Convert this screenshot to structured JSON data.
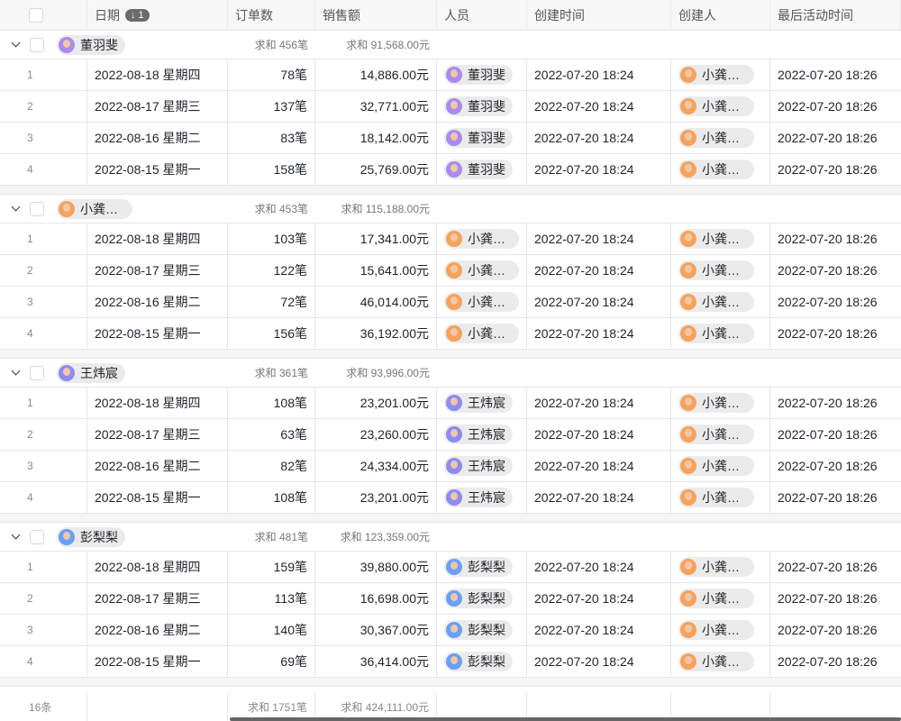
{
  "header": {
    "columns": [
      "日期",
      "订单数",
      "销售额",
      "人员",
      "创建时间",
      "创建人",
      "最后活动时间"
    ],
    "sort_badge": "↓ 1"
  },
  "groups": [
    {
      "name": "董羽斐",
      "avatar_color": "#a98bf0",
      "sum_orders": "求和 456笔",
      "sum_sales": "求和 91,568.00元",
      "rows": [
        [
          "1",
          "2022-08-18 星期四",
          "78笔",
          "14,886.00元"
        ],
        [
          "2",
          "2022-08-17 星期三",
          "137笔",
          "32,771.00元"
        ],
        [
          "3",
          "2022-08-16 星期二",
          "83笔",
          "18,142.00元"
        ],
        [
          "4",
          "2022-08-15 星期一",
          "158笔",
          "25,769.00元"
        ]
      ]
    },
    {
      "name": "小龚同学",
      "avatar_color": "#f5a25d",
      "sum_orders": "求和 453笔",
      "sum_sales": "求和 115,188.00元",
      "rows": [
        [
          "1",
          "2022-08-18 星期四",
          "103笔",
          "17,341.00元"
        ],
        [
          "2",
          "2022-08-17 星期三",
          "122笔",
          "15,641.00元"
        ],
        [
          "3",
          "2022-08-16 星期二",
          "72笔",
          "46,014.00元"
        ],
        [
          "4",
          "2022-08-15 星期一",
          "156笔",
          "36,192.00元"
        ]
      ]
    },
    {
      "name": "王炜宸",
      "avatar_color": "#8c8cf5",
      "sum_orders": "求和 361笔",
      "sum_sales": "求和 93,996.00元",
      "rows": [
        [
          "1",
          "2022-08-18 星期四",
          "108笔",
          "23,201.00元"
        ],
        [
          "2",
          "2022-08-17 星期三",
          "63笔",
          "23,260.00元"
        ],
        [
          "3",
          "2022-08-16 星期二",
          "82笔",
          "24,334.00元"
        ],
        [
          "4",
          "2022-08-15 星期一",
          "108笔",
          "23,201.00元"
        ]
      ]
    },
    {
      "name": "彭梨梨",
      "avatar_color": "#6aa0f7",
      "sum_orders": "求和 481笔",
      "sum_sales": "求和 123,359.00元",
      "rows": [
        [
          "1",
          "2022-08-18 星期四",
          "159笔",
          "39,880.00元"
        ],
        [
          "2",
          "2022-08-17 星期三",
          "113笔",
          "16,698.00元"
        ],
        [
          "3",
          "2022-08-16 星期二",
          "140笔",
          "30,367.00元"
        ],
        [
          "4",
          "2022-08-15 星期一",
          "69笔",
          "36,414.00元"
        ]
      ]
    }
  ],
  "created_time": "2022-07-20 18:24",
  "creator": "小龚同学",
  "creator_avatar_color": "#f5a25d",
  "last_active": "2022-07-20 18:26",
  "footer": {
    "count": "16条",
    "sum_orders": "求和 1751笔",
    "sum_sales": "求和 424,111.00元"
  }
}
